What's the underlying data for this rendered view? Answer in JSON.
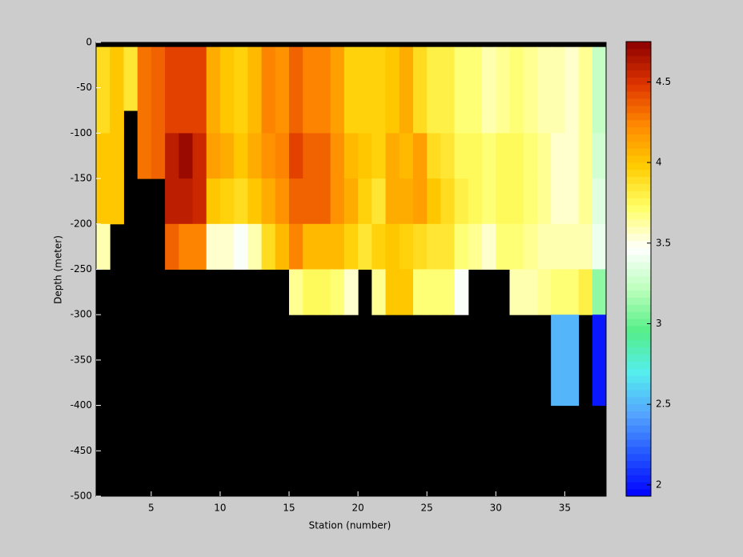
{
  "chart_data": {
    "type": "heatmap",
    "xlabel": "Station (number)",
    "ylabel": "Depth (meter)",
    "x_edges": [
      1,
      2,
      3,
      4,
      5,
      6,
      7,
      8,
      9,
      10,
      11,
      12,
      13,
      14,
      15,
      16,
      17,
      18,
      19,
      20,
      21,
      22,
      23,
      24,
      25,
      26,
      27,
      28,
      29,
      30,
      31,
      32,
      33,
      34,
      35,
      36,
      37,
      38
    ],
    "y_edges": [
      0,
      -5,
      -75,
      -100,
      -150,
      -200,
      -250,
      -300,
      -400,
      -500
    ],
    "values": [
      [
        null,
        null,
        null,
        null,
        null,
        null,
        null,
        null,
        null,
        null,
        null,
        null,
        null,
        null,
        null,
        null,
        null,
        null,
        null,
        null,
        null,
        null,
        null,
        null,
        null,
        null,
        null,
        null,
        null,
        null,
        null,
        null,
        null,
        null,
        null,
        null,
        null
      ],
      [
        3.9,
        4.0,
        3.85,
        4.3,
        4.35,
        4.45,
        4.45,
        4.45,
        4.1,
        4.0,
        3.95,
        4.05,
        4.25,
        4.2,
        4.35,
        4.25,
        4.25,
        4.15,
        3.95,
        3.95,
        3.95,
        4.0,
        4.1,
        3.9,
        3.8,
        3.8,
        3.7,
        3.7,
        3.6,
        3.65,
        3.7,
        3.65,
        3.6,
        3.6,
        3.55,
        3.65,
        3.25
      ],
      [
        3.9,
        4.0,
        null,
        4.3,
        4.35,
        4.45,
        4.45,
        4.45,
        4.1,
        4.0,
        3.95,
        4.05,
        4.25,
        4.2,
        4.35,
        4.25,
        4.25,
        4.15,
        3.95,
        3.95,
        3.95,
        4.0,
        4.1,
        3.9,
        3.8,
        3.8,
        3.7,
        3.7,
        3.6,
        3.65,
        3.7,
        3.65,
        3.6,
        3.6,
        3.55,
        3.65,
        3.25
      ],
      [
        4.0,
        4.0,
        null,
        4.3,
        4.35,
        4.6,
        4.7,
        4.55,
        4.15,
        4.1,
        4.0,
        4.1,
        4.2,
        4.25,
        4.45,
        4.35,
        4.35,
        4.2,
        4.05,
        4.0,
        3.95,
        4.1,
        4.05,
        4.15,
        3.9,
        3.85,
        3.75,
        3.75,
        3.7,
        3.75,
        3.75,
        3.7,
        3.65,
        3.55,
        3.55,
        3.65,
        3.3
      ],
      [
        4.0,
        4.0,
        null,
        null,
        null,
        4.6,
        4.6,
        4.55,
        4.0,
        3.95,
        3.9,
        4.0,
        4.1,
        4.2,
        4.35,
        4.35,
        4.35,
        4.2,
        4.1,
        3.95,
        3.85,
        4.1,
        4.1,
        4.15,
        4.0,
        3.9,
        3.8,
        3.75,
        3.7,
        3.75,
        3.75,
        3.7,
        3.65,
        3.55,
        3.55,
        3.65,
        3.35
      ],
      [
        3.6,
        null,
        null,
        null,
        null,
        4.35,
        4.25,
        4.25,
        3.55,
        3.55,
        3.45,
        3.6,
        3.9,
        4.05,
        4.25,
        4.05,
        4.05,
        4.05,
        3.95,
        3.85,
        3.95,
        4.0,
        3.95,
        3.9,
        3.85,
        3.85,
        3.7,
        3.65,
        3.55,
        3.7,
        3.7,
        3.65,
        3.6,
        3.6,
        3.6,
        3.6,
        3.4
      ],
      [
        null,
        null,
        null,
        null,
        null,
        null,
        null,
        null,
        null,
        null,
        null,
        null,
        null,
        null,
        3.65,
        3.75,
        3.75,
        3.7,
        3.55,
        null,
        3.65,
        4.0,
        4.0,
        3.7,
        3.7,
        3.7,
        3.45,
        null,
        null,
        null,
        3.6,
        3.6,
        3.65,
        3.7,
        3.7,
        3.8,
        3.1
      ],
      [
        null,
        null,
        null,
        null,
        null,
        null,
        null,
        null,
        null,
        null,
        null,
        null,
        null,
        null,
        null,
        null,
        null,
        null,
        null,
        null,
        null,
        null,
        null,
        null,
        null,
        null,
        null,
        null,
        null,
        null,
        null,
        null,
        null,
        2.5,
        2.5,
        null,
        2.0
      ],
      [
        null,
        null,
        null,
        null,
        null,
        null,
        null,
        null,
        null,
        null,
        null,
        null,
        null,
        null,
        null,
        null,
        null,
        null,
        null,
        null,
        null,
        null,
        null,
        null,
        null,
        null,
        null,
        null,
        null,
        null,
        null,
        null,
        null,
        null,
        null,
        null,
        null
      ]
    ],
    "xlim": [
      1,
      38
    ],
    "ylim": [
      -500,
      0
    ],
    "xticks": [
      5,
      10,
      15,
      20,
      25,
      30,
      35
    ],
    "yticks": [
      0,
      -50,
      -100,
      -150,
      -200,
      -250,
      -300,
      -350,
      -400,
      -450,
      -500
    ],
    "clim": [
      1.93,
      4.75
    ],
    "cticks": [
      2,
      2.5,
      3,
      3.5,
      4,
      4.5
    ],
    "colormap": [
      "#0000ff",
      "#2255ff",
      "#55a5ff",
      "#55eeee",
      "#55ee88",
      "#bbffbb",
      "#ffffff",
      "#ffff66",
      "#ffcc00",
      "#ff8800",
      "#dd3300",
      "#8b0000"
    ],
    "missing_color": "#000000"
  }
}
